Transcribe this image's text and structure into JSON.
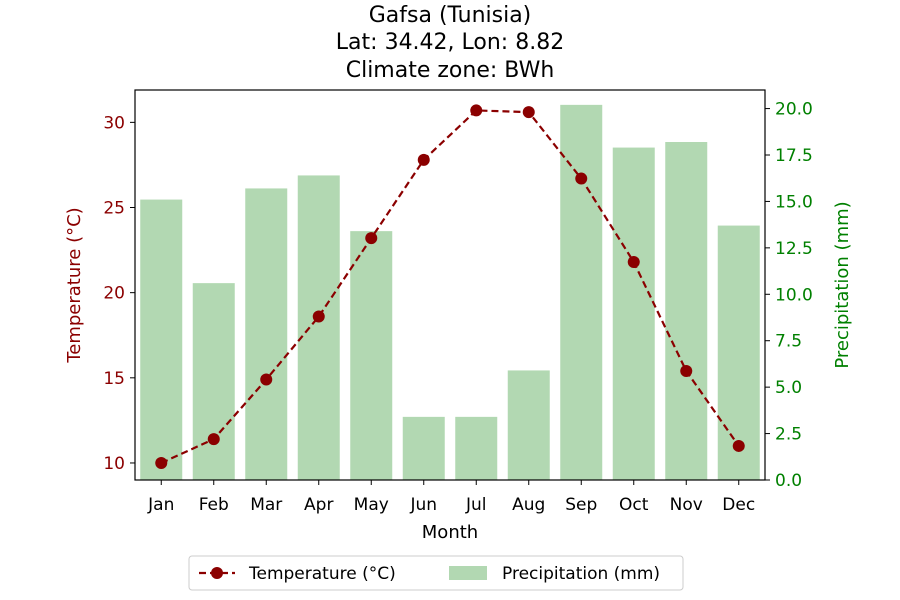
{
  "chart_data": {
    "type": "bar+line",
    "title_lines": [
      "Gafsa (Tunisia)",
      "Lat: 34.42, Lon: 8.82",
      "Climate zone: BWh"
    ],
    "xlabel": "Month",
    "categories": [
      "Jan",
      "Feb",
      "Mar",
      "Apr",
      "May",
      "Jun",
      "Jul",
      "Aug",
      "Sep",
      "Oct",
      "Nov",
      "Dec"
    ],
    "y_left": {
      "label": "Temperature (°C)",
      "range": [
        9.0,
        31.9
      ],
      "ticks": [
        10,
        15,
        20,
        25,
        30
      ],
      "tick_labels": [
        "10",
        "15",
        "20",
        "25",
        "30"
      ],
      "color": "#8b0000"
    },
    "y_right": {
      "label": "Precipitation (mm)",
      "range": [
        0,
        21
      ],
      "ticks": [
        0,
        2.5,
        5,
        7.5,
        10,
        12.5,
        15,
        17.5,
        20
      ],
      "tick_labels": [
        "0.0",
        "2.5",
        "5.0",
        "7.5",
        "10.0",
        "12.5",
        "15.0",
        "17.5",
        "20.0"
      ],
      "color": "#008000"
    },
    "series": [
      {
        "name": "Temperature (°C)",
        "kind": "line",
        "axis": "left",
        "color": "#8b0000",
        "values": [
          10.0,
          11.4,
          14.9,
          18.6,
          23.2,
          27.8,
          30.7,
          30.6,
          26.7,
          21.8,
          15.4,
          11.0
        ]
      },
      {
        "name": "Precipitation (mm)",
        "kind": "bar",
        "axis": "right",
        "color": "#b2d8b2",
        "values": [
          15.1,
          10.6,
          15.7,
          16.4,
          13.4,
          3.4,
          3.4,
          5.9,
          20.2,
          17.9,
          18.2,
          13.7
        ]
      }
    ],
    "legend_position": "bottom-center",
    "grid": false
  }
}
